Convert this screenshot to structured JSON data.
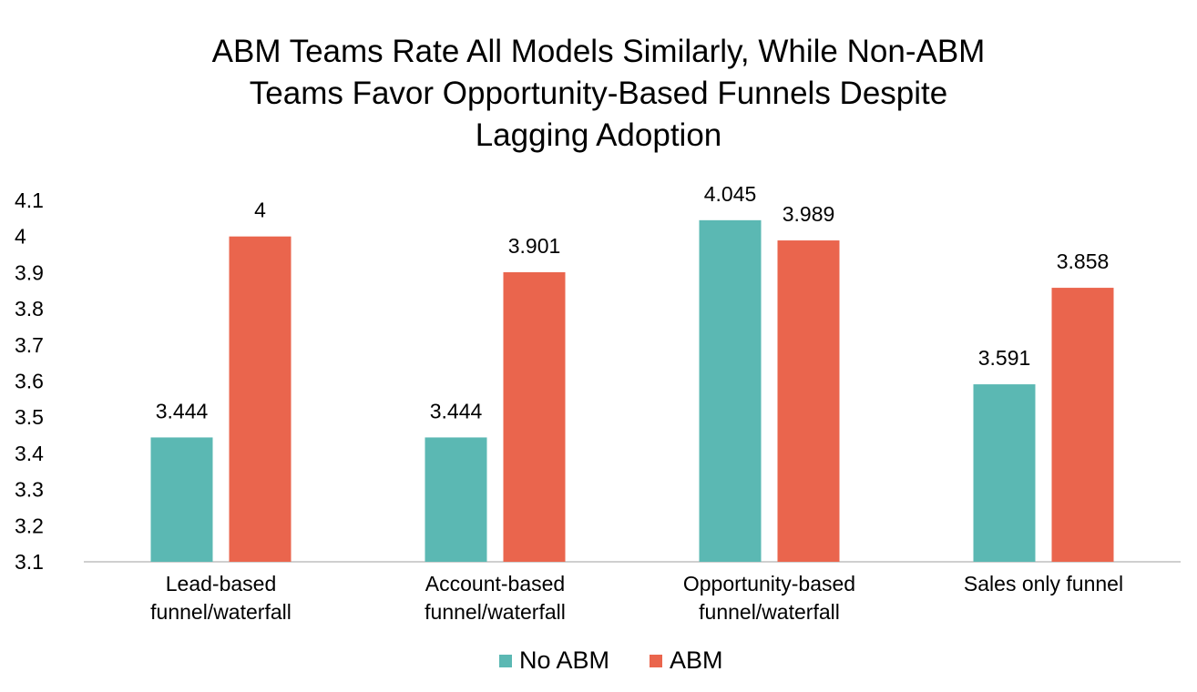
{
  "chart_data": {
    "type": "bar",
    "title_lines": [
      "ABM Teams Rate All Models Similarly, While Non-ABM",
      "Teams Favor Opportunity-Based Funnels Despite",
      "Lagging Adoption"
    ],
    "xlabel": "",
    "ylabel": "",
    "categories": [
      [
        "Lead-based",
        "funnel/waterfall"
      ],
      [
        "Account-based",
        "funnel/waterfall"
      ],
      [
        "Opportunity-based",
        "funnel/waterfall"
      ],
      [
        "Sales only funnel"
      ]
    ],
    "series": [
      {
        "name": "No ABM",
        "color": "#5BB8B3",
        "values": [
          3.444,
          3.444,
          4.045,
          3.591
        ],
        "labels": [
          "3.444",
          "3.444",
          "4.045",
          "3.591"
        ]
      },
      {
        "name": "ABM",
        "color": "#EA654D",
        "values": [
          4,
          3.901,
          3.989,
          3.858
        ],
        "labels": [
          "4",
          "3.901",
          "3.989",
          "3.858"
        ]
      }
    ],
    "ylim": [
      3.1,
      4.1
    ],
    "yticks": [
      "3.1",
      "3.2",
      "3.3",
      "3.4",
      "3.5",
      "3.6",
      "3.7",
      "3.8",
      "3.9",
      "4",
      "4.1"
    ],
    "grid": false,
    "legend_position": "bottom-center"
  }
}
